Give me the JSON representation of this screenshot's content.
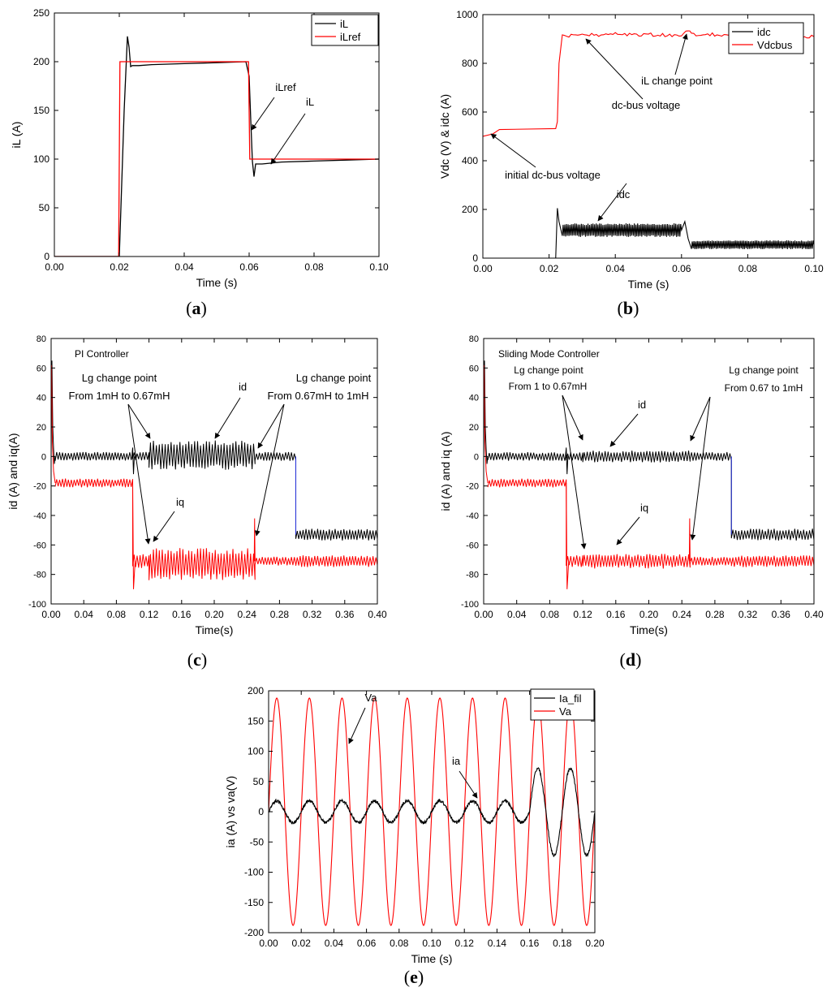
{
  "colors": {
    "black_series": "#000000",
    "red_series": "#ff0000",
    "blue_series": "#1f2bd6",
    "axis": "#000000",
    "background": "#ffffff"
  },
  "chart_data": [
    {
      "id": "a",
      "type": "line",
      "panel_label": "a",
      "xlabel": "Time (s)",
      "ylabel": "iL (A)",
      "xlim": [
        0,
        0.1
      ],
      "ylim": [
        0,
        250
      ],
      "xticks": [
        0,
        0.02,
        0.04,
        0.06,
        0.08,
        0.1
      ],
      "xtick_labels": [
        "0.00",
        "0.02",
        "0.04",
        "0.06",
        "0.08",
        "0.10"
      ],
      "yticks": [
        0,
        50,
        100,
        150,
        200,
        250
      ],
      "ytick_labels": [
        "0",
        "50",
        "100",
        "150",
        "200",
        "250"
      ],
      "legend": [
        "iL",
        "iLref"
      ],
      "legend_position": "top-right",
      "series": [
        {
          "name": "iL",
          "color": "black",
          "x": [
            0,
            0.02,
            0.0215,
            0.0225,
            0.023,
            0.0235,
            0.024,
            0.026,
            0.03,
            0.04,
            0.05,
            0.059,
            0.06,
            0.0605,
            0.061,
            0.0615,
            0.062,
            0.064,
            0.07,
            0.08,
            0.09,
            0.1
          ],
          "y": [
            0,
            0,
            150,
            226,
            215,
            195,
            196,
            196,
            197,
            198,
            199,
            200,
            185,
            140,
            98,
            82,
            95,
            95,
            97,
            98,
            99,
            100
          ]
        },
        {
          "name": "iLref",
          "color": "red",
          "x": [
            0,
            0.0198,
            0.0202,
            0.0598,
            0.0602,
            0.1
          ],
          "y": [
            0,
            0,
            200,
            200,
            100,
            100
          ]
        }
      ],
      "annotations": [
        {
          "text": "iLref",
          "target_x": 0.0605,
          "target_y": 130
        },
        {
          "text": "iL",
          "target_x": 0.066,
          "target_y": 97
        }
      ]
    },
    {
      "id": "b",
      "type": "line",
      "panel_label": "b",
      "xlabel": "Time (s)",
      "ylabel": "Vdc (V) & idc (A)",
      "xlim": [
        0,
        0.1
      ],
      "ylim": [
        0,
        1000
      ],
      "xticks": [
        0,
        0.02,
        0.04,
        0.06,
        0.08,
        0.1
      ],
      "xtick_labels": [
        "0.00",
        "0.02",
        "0.04",
        "0.06",
        "0.08",
        "0.10"
      ],
      "yticks": [
        0,
        200,
        400,
        600,
        800,
        1000
      ],
      "ytick_labels": [
        "0",
        "200",
        "400",
        "600",
        "800",
        "1000"
      ],
      "legend": [
        "idc",
        "Vdcbus"
      ],
      "legend_position": "top-right",
      "series": [
        {
          "name": "idc",
          "color": "black",
          "x": [
            0,
            0.022,
            0.0225,
            0.023,
            0.024,
            0.06,
            0.061,
            0.062,
            0.063,
            0.1
          ],
          "y": [
            0,
            0,
            205,
            150,
            115,
            115,
            150,
            80,
            55,
            55
          ],
          "ripple": {
            "from": 0.024,
            "to": 0.06,
            "amplitude": 28,
            "from2": 0.063,
            "to2": 0.1,
            "amplitude2": 18
          }
        },
        {
          "name": "Vdcbus",
          "color": "red",
          "x": [
            0,
            0.003,
            0.005,
            0.022,
            0.0225,
            0.023,
            0.024,
            0.03,
            0.04,
            0.05,
            0.06,
            0.062,
            0.063,
            0.07,
            0.08,
            0.09,
            0.1
          ],
          "y": [
            500,
            510,
            528,
            532,
            560,
            800,
            912,
            915,
            920,
            918,
            915,
            935,
            920,
            918,
            915,
            910,
            910
          ]
        }
      ],
      "annotations": [
        {
          "text": "dc-bus voltage",
          "target_x": 0.033,
          "target_y": 912
        },
        {
          "text": "iL change point",
          "target_x": 0.062,
          "target_y": 925
        },
        {
          "text": "initial dc-bus voltage",
          "target_x": 0.003,
          "target_y": 510
        },
        {
          "text": "idc",
          "target_x": 0.035,
          "target_y": 145
        }
      ]
    },
    {
      "id": "c",
      "type": "line",
      "panel_label": "c",
      "title": "PI Controller",
      "xlabel": "Time(s)",
      "ylabel": "id (A) and iq(A)",
      "xlim": [
        0,
        0.4
      ],
      "ylim": [
        -100,
        80
      ],
      "xticks": [
        0,
        0.04,
        0.08,
        0.12,
        0.16,
        0.2,
        0.24,
        0.28,
        0.32,
        0.36,
        0.4
      ],
      "xtick_labels": [
        "0.00",
        "0.04",
        "0.08",
        "0.12",
        "0.16",
        "0.20",
        "0.24",
        "0.28",
        "0.32",
        "0.36",
        "0.40"
      ],
      "yticks": [
        -100,
        -80,
        -60,
        -40,
        -20,
        0,
        20,
        40,
        60,
        80
      ],
      "ytick_labels": [
        "-100",
        "-80",
        "-60",
        "-40",
        "-20",
        "0",
        "20",
        "40",
        "60",
        "80"
      ],
      "series": [
        {
          "name": "id",
          "color": "black",
          "segments": [
            {
              "from": 0.005,
              "to": 0.1,
              "level": 0,
              "amplitude": 3
            },
            {
              "from": 0.1,
              "to": 0.12,
              "level": 0,
              "amplitude": 3
            },
            {
              "from": 0.12,
              "to": 0.25,
              "level": 1,
              "amplitude": 10
            },
            {
              "from": 0.25,
              "to": 0.3,
              "level": 0,
              "amplitude": 3
            },
            {
              "from": 0.3,
              "to": 0.4,
              "level": -53,
              "amplitude": 4
            }
          ]
        },
        {
          "name": "iq",
          "color": "red",
          "segments": [
            {
              "from": 0.005,
              "to": 0.1,
              "level": -18,
              "amplitude": 3
            },
            {
              "from": 0.1,
              "to": 0.12,
              "level": -71,
              "amplitude": 5
            },
            {
              "from": 0.12,
              "to": 0.25,
              "level": -73,
              "amplitude": 11
            },
            {
              "from": 0.25,
              "to": 0.3,
              "level": -71,
              "amplitude": 3
            },
            {
              "from": 0.3,
              "to": 0.4,
              "level": -71,
              "amplitude": 4
            }
          ]
        }
      ],
      "annotations": [
        {
          "text": "Lg change point",
          "line2": "From 1mH to 0.67mH",
          "target_x": 0.12,
          "target_y": 5
        },
        {
          "text": "id",
          "target_x": 0.18,
          "target_y": 12
        },
        {
          "text": "Lg change point",
          "line2": "From 0.67mH to 1mH",
          "target_x": 0.25,
          "target_y": 8
        },
        {
          "text": "iq",
          "target_x": 0.12,
          "target_y": -70
        }
      ]
    },
    {
      "id": "d",
      "type": "line",
      "panel_label": "d",
      "title": "Sliding Mode Controller",
      "xlabel": "Time(s)",
      "ylabel": "id (A) and iq (A)",
      "xlim": [
        0,
        0.4
      ],
      "ylim": [
        -100,
        80
      ],
      "xticks": [
        0,
        0.04,
        0.08,
        0.12,
        0.16,
        0.2,
        0.24,
        0.28,
        0.32,
        0.36,
        0.4
      ],
      "xtick_labels": [
        "0.00",
        "0.04",
        "0.08",
        "0.12",
        "0.16",
        "0.20",
        "0.24",
        "0.28",
        "0.32",
        "0.36",
        "0.40"
      ],
      "yticks": [
        -100,
        -80,
        -60,
        -40,
        -20,
        0,
        20,
        40,
        60,
        80
      ],
      "ytick_labels": [
        "-100",
        "-80",
        "-60",
        "-40",
        "-20",
        "0",
        "20",
        "40",
        "60",
        "80"
      ],
      "series": [
        {
          "name": "id",
          "color": "black",
          "segments": [
            {
              "from": 0.005,
              "to": 0.1,
              "level": 0,
              "amplitude": 3
            },
            {
              "from": 0.1,
              "to": 0.12,
              "level": 0,
              "amplitude": 3
            },
            {
              "from": 0.12,
              "to": 0.25,
              "level": 0,
              "amplitude": 4
            },
            {
              "from": 0.25,
              "to": 0.3,
              "level": 0,
              "amplitude": 3
            },
            {
              "from": 0.3,
              "to": 0.4,
              "level": -53,
              "amplitude": 4
            }
          ]
        },
        {
          "name": "iq",
          "color": "red",
          "segments": [
            {
              "from": 0.005,
              "to": 0.1,
              "level": -18,
              "amplitude": 3
            },
            {
              "from": 0.1,
              "to": 0.12,
              "level": -71,
              "amplitude": 4
            },
            {
              "from": 0.12,
              "to": 0.25,
              "level": -71,
              "amplitude": 5
            },
            {
              "from": 0.25,
              "to": 0.3,
              "level": -71,
              "amplitude": 3
            },
            {
              "from": 0.3,
              "to": 0.4,
              "level": -71,
              "amplitude": 4
            }
          ]
        }
      ],
      "annotations": [
        {
          "text": "Lg change point",
          "line2": "From 1 to 0.67mH",
          "target_x": 0.12,
          "target_y": 3
        },
        {
          "text": "id",
          "target_x": 0.16,
          "target_y": 4
        },
        {
          "text": "Lg change point",
          "line2": "From 0.67 to 1mH",
          "target_x": 0.25,
          "target_y": 3
        },
        {
          "text": "iq",
          "target_x": 0.12,
          "target_y": -70
        }
      ]
    },
    {
      "id": "e",
      "type": "line",
      "panel_label": "e",
      "xlabel": "Time (s)",
      "ylabel": "ia (A) vs va(V)",
      "xlim": [
        0,
        0.2
      ],
      "ylim": [
        -200,
        200
      ],
      "xticks": [
        0,
        0.02,
        0.04,
        0.06,
        0.08,
        0.1,
        0.12,
        0.14,
        0.16,
        0.18,
        0.2
      ],
      "xtick_labels": [
        "0.00",
        "0.02",
        "0.04",
        "0.06",
        "0.08",
        "0.10",
        "0.12",
        "0.14",
        "0.16",
        "0.18",
        "0.20"
      ],
      "yticks": [
        -200,
        -150,
        -100,
        -50,
        0,
        50,
        100,
        150,
        200
      ],
      "ytick_labels": [
        "-200",
        "-150",
        "-100",
        "-50",
        "0",
        "50",
        "100",
        "150",
        "200"
      ],
      "legend": [
        "Ia_fil",
        "Va"
      ],
      "legend_position": "top-right",
      "series": [
        {
          "name": "Va",
          "color": "red",
          "frequency_hz": 50,
          "amplitude": 188
        },
        {
          "name": "Ia_fil",
          "color": "black",
          "frequency_hz": 50,
          "amplitude_before": 18,
          "amplitude_after": 72,
          "change_time": 0.16
        }
      ],
      "annotations": [
        {
          "text": "Va",
          "target_x": 0.05,
          "target_y": 150
        },
        {
          "text": "ia",
          "target_x": 0.125,
          "target_y": 18
        }
      ]
    }
  ]
}
